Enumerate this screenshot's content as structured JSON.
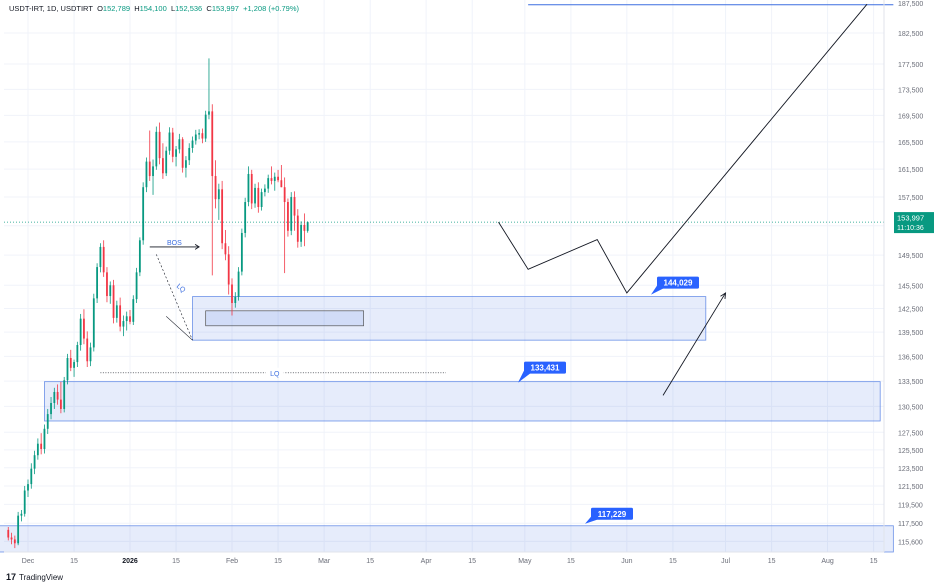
{
  "header": {
    "symbol": "USDT-IRT, 1D, USDTIRT",
    "open_label": "O",
    "open": "152,789",
    "high_label": "H",
    "high": "154,100",
    "low_label": "L",
    "low": "152,536",
    "close_label": "C",
    "close": "153,997",
    "change": "+1,208 (+0.79%)"
  },
  "watermark": "TradingView",
  "watermark_logo": "17",
  "colors": {
    "up": "#089981",
    "down": "#f23645",
    "zone": "#3d6fe0",
    "badge": "#2962ff",
    "text": "#131722",
    "axis": "#6a6d78"
  },
  "chart_data": {
    "type": "candlestick",
    "symbol": "USDT-IRT",
    "interval": "1D",
    "y_axis": {
      "scale": "log",
      "ylim": [
        114500,
        188000
      ],
      "ticks": [
        115600,
        117500,
        119500,
        121500,
        123500,
        125500,
        127500,
        130500,
        133500,
        136500,
        139500,
        142500,
        145500,
        149500,
        153500,
        157500,
        161500,
        165500,
        169500,
        173500,
        177500,
        182500
      ],
      "tick_labels": [
        "115,600",
        "117,500",
        "119,500",
        "121,500",
        "123,500",
        "125,500",
        "127,500",
        "130,500",
        "133,500",
        "136,500",
        "139,500",
        "142,500",
        "145,500",
        "149,500",
        "153,500",
        "157,500",
        "161,500",
        "165,500",
        "169,500",
        "173,500",
        "177,500",
        "182,500"
      ],
      "top_partial_label": "187,500"
    },
    "x_axis": {
      "tick_labels": [
        "Dec",
        "15",
        "2026",
        "15",
        "Feb",
        "15",
        "Mar",
        "15",
        "Apr",
        "15",
        "May",
        "15",
        "Jun",
        "15",
        "Jul",
        "15",
        "Aug",
        "15"
      ],
      "tick_dates": [
        "2025-12-01",
        "2025-12-15",
        "2026-01-01",
        "2026-01-15",
        "2026-02-01",
        "2026-02-15",
        "2026-03-01",
        "2026-03-15",
        "2026-04-01",
        "2026-04-15",
        "2026-05-01",
        "2026-05-15",
        "2026-06-01",
        "2026-06-15",
        "2026-07-01",
        "2026-07-15",
        "2026-08-01",
        "2026-08-15"
      ]
    },
    "last_price": {
      "value": 153997,
      "label": "153,997",
      "countdown": "11:10:36"
    },
    "candles_ohlc": [
      [
        116800,
        117100,
        115700,
        116000
      ],
      [
        116000,
        116500,
        115300,
        115800
      ],
      [
        115800,
        116200,
        114900,
        115400
      ],
      [
        115400,
        118700,
        115200,
        118300
      ],
      [
        118300,
        118900,
        117700,
        118500
      ],
      [
        118500,
        121500,
        118200,
        121000
      ],
      [
        121000,
        122200,
        120300,
        121700
      ],
      [
        121700,
        124000,
        121200,
        123400
      ],
      [
        123400,
        125400,
        122800,
        124900
      ],
      [
        124900,
        126800,
        124400,
        126200
      ],
      [
        126200,
        127400,
        125000,
        125600
      ],
      [
        125600,
        128400,
        125100,
        127900
      ],
      [
        127900,
        130200,
        127300,
        129600
      ],
      [
        129600,
        131600,
        129000,
        130900
      ],
      [
        130900,
        132700,
        130200,
        132200
      ],
      [
        132200,
        133100,
        130700,
        131300
      ],
      [
        131300,
        133400,
        129700,
        130200
      ],
      [
        130200,
        134000,
        129800,
        133600
      ],
      [
        133600,
        136800,
        133100,
        136300
      ],
      [
        136300,
        137300,
        134700,
        135100
      ],
      [
        135100,
        136100,
        134000,
        135800
      ],
      [
        135800,
        138300,
        135200,
        137900
      ],
      [
        137900,
        141800,
        137200,
        141200
      ],
      [
        141200,
        142400,
        138000,
        138700
      ],
      [
        138700,
        139600,
        135200,
        135900
      ],
      [
        135900,
        138200,
        135300,
        137600
      ],
      [
        137600,
        144400,
        137100,
        143800
      ],
      [
        143800,
        148400,
        143200,
        147900
      ],
      [
        147900,
        151100,
        147200,
        150600
      ],
      [
        150600,
        151500,
        146600,
        147200
      ],
      [
        147200,
        147900,
        143300,
        144100
      ],
      [
        144100,
        146000,
        143100,
        145500
      ],
      [
        145500,
        146200,
        140600,
        141300
      ],
      [
        141300,
        143500,
        140700,
        142900
      ],
      [
        142900,
        143900,
        139600,
        140200
      ],
      [
        140200,
        141600,
        139000,
        140900
      ],
      [
        140900,
        142100,
        139700,
        141500
      ],
      [
        141500,
        142300,
        140500,
        140800
      ],
      [
        140800,
        144200,
        140400,
        143700
      ],
      [
        143700,
        147800,
        143200,
        147200
      ],
      [
        147200,
        151900,
        146700,
        151500
      ],
      [
        151500,
        159600,
        150900,
        158900
      ],
      [
        158900,
        163200,
        158200,
        162600
      ],
      [
        162600,
        167200,
        159800,
        160500
      ],
      [
        160500,
        162900,
        157800,
        161900
      ],
      [
        161900,
        167800,
        161400,
        167000
      ],
      [
        167000,
        168400,
        162200,
        163100
      ],
      [
        163100,
        165300,
        160100,
        160900
      ],
      [
        160900,
        164800,
        160500,
        164200
      ],
      [
        164200,
        167700,
        163600,
        166900
      ],
      [
        166900,
        167600,
        162500,
        163300
      ],
      [
        163300,
        164900,
        161900,
        164400
      ],
      [
        164400,
        166700,
        163800,
        165900
      ],
      [
        165900,
        166200,
        161000,
        161700
      ],
      [
        161700,
        163400,
        160300,
        162800
      ],
      [
        162800,
        165300,
        162100,
        164600
      ],
      [
        164600,
        166300,
        163900,
        165700
      ],
      [
        165700,
        167300,
        165100,
        166600
      ],
      [
        166600,
        167400,
        165900,
        166800
      ],
      [
        166800,
        167500,
        165300,
        166000
      ],
      [
        166000,
        170200,
        165500,
        169600
      ],
      [
        169600,
        178400,
        168900,
        170100
      ],
      [
        170100,
        171200,
        146800,
        160500
      ],
      [
        160500,
        162800,
        155900,
        157200
      ],
      [
        157200,
        159400,
        154300,
        158600
      ],
      [
        158600,
        159800,
        150300,
        151100
      ],
      [
        151100,
        152900,
        148800,
        149600
      ],
      [
        149600,
        150700,
        144300,
        145600
      ],
      [
        145600,
        146400,
        141600,
        143200
      ],
      [
        143200,
        144600,
        142600,
        144000
      ],
      [
        144000,
        147900,
        143500,
        147300
      ],
      [
        147300,
        153100,
        146800,
        152500
      ],
      [
        152500,
        157400,
        151900,
        156800
      ],
      [
        156800,
        161900,
        156200,
        160800
      ],
      [
        160800,
        161400,
        155800,
        156600
      ],
      [
        156600,
        159400,
        156000,
        158800
      ],
      [
        158800,
        159600,
        155300,
        156100
      ],
      [
        156100,
        158700,
        155600,
        158200
      ],
      [
        158200,
        159300,
        157600,
        158700
      ],
      [
        158700,
        160700,
        158100,
        160200
      ],
      [
        160200,
        161900,
        159300,
        159800
      ],
      [
        159800,
        161000,
        158400,
        160400
      ],
      [
        160400,
        161400,
        159600,
        159900
      ],
      [
        159900,
        162100,
        158900,
        158900
      ],
      [
        158900,
        160300,
        147100,
        156800
      ],
      [
        156800,
        157300,
        152000,
        152800
      ],
      [
        152800,
        158200,
        152200,
        157500
      ],
      [
        157500,
        158300,
        152800,
        154900
      ],
      [
        154900,
        155800,
        150500,
        151300
      ],
      [
        151300,
        154100,
        150600,
        153600
      ],
      [
        153600,
        155200,
        150700,
        152789
      ],
      [
        152789,
        154100,
        152536,
        153997
      ]
    ],
    "annotations": {
      "zones": [
        {
          "label": "144,029",
          "from_date": "2026-01-20",
          "to_date": "2026-06-25",
          "y_low": 138500,
          "y_high": 144029
        },
        {
          "label": "133,431",
          "from_date": "2025-12-06",
          "to_date": "2026-08-17",
          "y_low": 128800,
          "y_high": 133431
        },
        {
          "label": "117,229",
          "from_date": "2025-11-21",
          "to_date": "2026-08-21",
          "y_low": 114500,
          "y_high": 117229
        }
      ],
      "inner_zone": {
        "from_date": "2026-01-24",
        "to_date": "2026-03-13",
        "y_low": 140300,
        "y_high": 142200
      },
      "text_labels": [
        "BOS",
        "LQ",
        "LQ"
      ],
      "projection_path": [
        [
          "2026-04-23",
          153997
        ],
        [
          "2026-05-02",
          147600
        ],
        [
          "2026-05-23",
          151600
        ],
        [
          "2026-06-01",
          144500
        ],
        [
          "2026-08-13",
          187300
        ]
      ],
      "projection_arrow": [
        [
          "2026-06-12",
          131800
        ],
        [
          "2026-07-01",
          144500
        ]
      ],
      "top_line": {
        "from_date": "2026-05-02",
        "to_date": "2026-08-21",
        "y": 187200
      }
    }
  }
}
